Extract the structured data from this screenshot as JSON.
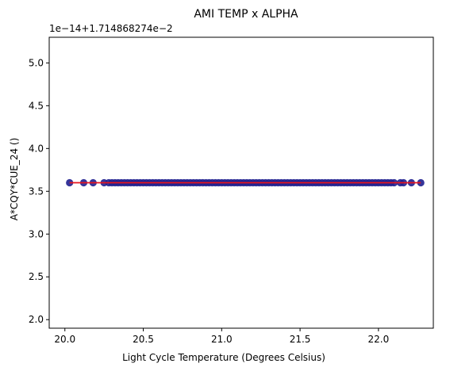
{
  "chart_data": {
    "type": "scatter",
    "title": "AMI TEMP x ALPHA",
    "xlabel": "Light Cycle Temperature (Degrees Celsius)",
    "ylabel": "A*CQY*CUE_24 ()",
    "y_offset_label": "1e−14+1.714868274e−2",
    "xlim": [
      19.9,
      22.35
    ],
    "ylim": [
      1.9,
      5.3
    ],
    "x_ticks": [
      20.0,
      20.5,
      21.0,
      21.5,
      22.0
    ],
    "x_tick_labels": [
      "20.0",
      "20.5",
      "21.0",
      "21.5",
      "22.0"
    ],
    "y_ticks": [
      2.0,
      2.5,
      3.0,
      3.5,
      4.0,
      4.5,
      5.0
    ],
    "y_tick_labels": [
      "2.0",
      "2.5",
      "3.0",
      "3.5",
      "4.0",
      "4.5",
      "5.0"
    ],
    "grid": false,
    "series": [
      {
        "marker_color": "#1f1f8f",
        "x": [
          20.03,
          20.12,
          20.18,
          20.25,
          20.28,
          20.3,
          20.32,
          20.34,
          20.36,
          20.38,
          20.4,
          20.42,
          20.44,
          20.46,
          20.48,
          20.5,
          20.52,
          20.54,
          20.56,
          20.58,
          20.6,
          20.62,
          20.64,
          20.66,
          20.68,
          20.7,
          20.72,
          20.74,
          20.76,
          20.78,
          20.8,
          20.82,
          20.84,
          20.86,
          20.88,
          20.9,
          20.92,
          20.94,
          20.96,
          20.98,
          21.0,
          21.02,
          21.04,
          21.06,
          21.08,
          21.1,
          21.12,
          21.14,
          21.16,
          21.18,
          21.2,
          21.22,
          21.24,
          21.26,
          21.28,
          21.3,
          21.32,
          21.34,
          21.36,
          21.38,
          21.4,
          21.42,
          21.44,
          21.46,
          21.48,
          21.5,
          21.52,
          21.54,
          21.56,
          21.58,
          21.6,
          21.62,
          21.64,
          21.66,
          21.68,
          21.7,
          21.72,
          21.74,
          21.76,
          21.78,
          21.8,
          21.82,
          21.84,
          21.86,
          21.88,
          21.9,
          21.92,
          21.94,
          21.96,
          21.98,
          22.0,
          22.02,
          22.04,
          22.06,
          22.08,
          22.1,
          22.14,
          22.16,
          22.21,
          22.27
        ],
        "y": 3.6
      }
    ],
    "fit_line": {
      "color": "#e8141c",
      "x": [
        20.03,
        22.27
      ],
      "y": [
        3.6,
        3.6
      ]
    }
  }
}
